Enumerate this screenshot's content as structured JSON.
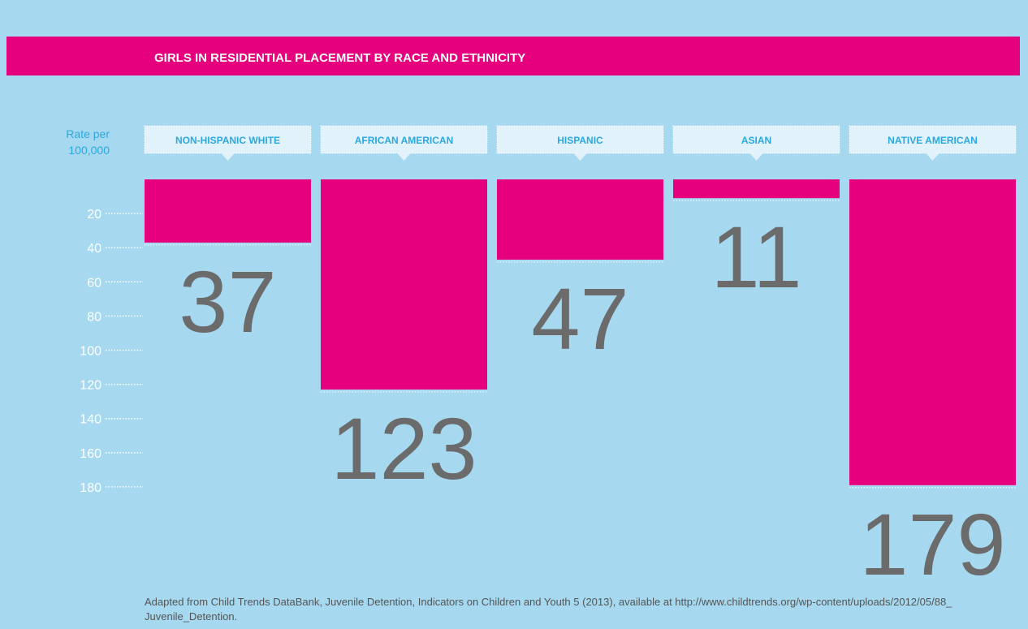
{
  "chart_data": {
    "type": "bar",
    "title": "GIRLS IN RESIDENTIAL PLACEMENT BY RACE AND ETHNICITY",
    "y_label": [
      "Rate per",
      "100,000"
    ],
    "categories": [
      "NON-HISPANIC WHITE",
      "AFRICAN AMERICAN",
      "HISPANIC",
      "ASIAN",
      "NATIVE AMERICAN"
    ],
    "values": [
      37,
      123,
      47,
      11,
      179
    ],
    "color": "#e6007e",
    "ylim": [
      0,
      200
    ],
    "yticks": [
      20,
      40,
      60,
      80,
      100,
      120,
      140,
      160,
      180
    ],
    "inverted": true,
    "source": [
      "Adapted from Child Trends DataBank, Juvenile Detention, Indicators on Children and Youth 5 (2013), available at http://www.childtrends.org/wp-content/uploads/2012/05/88_",
      "Juvenile_Detention."
    ]
  }
}
